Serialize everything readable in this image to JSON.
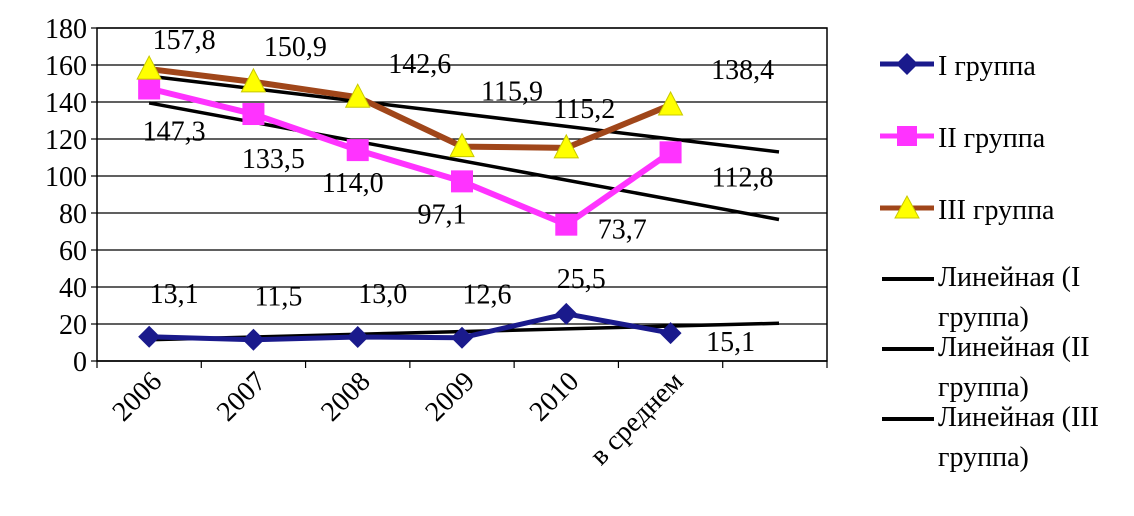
{
  "chart_data": {
    "type": "line",
    "categories": [
      "2006",
      "2007",
      "2008",
      "2009",
      "2010",
      "в среднем"
    ],
    "ylim": [
      0,
      180
    ],
    "yticks": [
      0,
      20,
      40,
      60,
      80,
      100,
      120,
      140,
      160,
      180
    ],
    "grid": true,
    "legend_position": "right",
    "series": [
      {
        "name": "I группа",
        "values": [
          13.1,
          11.5,
          13.0,
          12.6,
          25.5,
          15.1
        ],
        "labels": [
          "13,1",
          "11,5",
          "13,0",
          "12,6",
          "25,5",
          "15,1"
        ],
        "color": "#1a1a8c",
        "marker": "diamond"
      },
      {
        "name": "II группа",
        "values": [
          147.3,
          133.5,
          114.0,
          97.1,
          73.7,
          112.8
        ],
        "labels": [
          "147,3",
          "133,5",
          "114,0",
          "97,1",
          "73,7",
          "112,8"
        ],
        "color": "#ff33ff",
        "marker": "square"
      },
      {
        "name": "III группа",
        "values": [
          157.8,
          150.9,
          142.6,
          115.9,
          115.2,
          138.4
        ],
        "labels": [
          "157,8",
          "150,9",
          "142,6",
          "115,9",
          "115,2",
          "138,4"
        ],
        "color": "#a0461a",
        "marker": "triangle"
      }
    ],
    "trendlines": [
      {
        "name": "Линейная (I группа)",
        "start": 11.5,
        "end": 20.4,
        "color": "#000000"
      },
      {
        "name": "Линейная (II группа)",
        "start": 139.5,
        "end": 76.5,
        "color": "#000000"
      },
      {
        "name": "Линейная (III группа)",
        "start": 154.0,
        "end": 113.0,
        "color": "#000000"
      }
    ],
    "marker_colors": {
      "I группа": "#1a1a8c",
      "II группа": "#ff33ff",
      "III группа": "#ffff00"
    }
  }
}
